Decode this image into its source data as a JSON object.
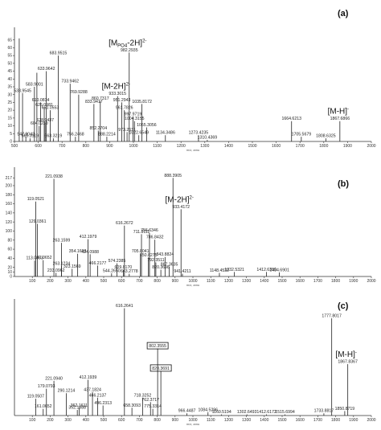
{
  "chart_data": [
    {
      "type": "bar",
      "panel_label": "(a)",
      "xlabel": "m/z, amu",
      "ylabel": "",
      "xlim": [
        500,
        2000
      ],
      "ylim": [
        0,
        70
      ],
      "x_ticks": [
        500,
        600,
        700,
        800,
        900,
        1000,
        1100,
        1200,
        1300,
        1400,
        1500,
        1600,
        1700,
        1800,
        1900,
        2000
      ],
      "y_ticks": [
        0,
        5,
        10,
        15,
        20,
        25,
        30,
        35,
        40,
        45,
        50,
        55,
        60,
        65
      ],
      "peaks": [
        {
          "x": 520.0,
          "y": 66,
          "label": ""
        },
        {
          "x": 533.9545,
          "y": 31,
          "label": "533.9545"
        },
        {
          "x": 547.8042,
          "y": 3,
          "label": "547.8042"
        },
        {
          "x": 565.3119,
          "y": 2,
          "label": "565.3119"
        },
        {
          "x": 583.9001,
          "y": 35,
          "label": "583.9001"
        },
        {
          "x": 594.2,
          "y": 44,
          "label": ""
        },
        {
          "x": 604.023,
          "y": 10,
          "label": "604.0230"
        },
        {
          "x": 610.0834,
          "y": 25,
          "label": "610.0834"
        },
        {
          "x": 625.0981,
          "y": 22,
          "label": "625.0981"
        },
        {
          "x": 628.9437,
          "y": 12,
          "label": "628.9437"
        },
        {
          "x": 633.9642,
          "y": 45,
          "label": "633.9642"
        },
        {
          "x": 650.0553,
          "y": 20,
          "label": "650.0553"
        },
        {
          "x": 663.3219,
          "y": 2,
          "label": "663.3219"
        },
        {
          "x": 683.9515,
          "y": 55,
          "label": "683.9515"
        },
        {
          "x": 733.9462,
          "y": 37,
          "label": "733.9462"
        },
        {
          "x": 756.2468,
          "y": 3,
          "label": "756.2468"
        },
        {
          "x": 769.9288,
          "y": 30,
          "label": "769.9288"
        },
        {
          "x": 833.9417,
          "y": 24,
          "label": "833.9417"
        },
        {
          "x": 852.2704,
          "y": 7,
          "label": "852.2704"
        },
        {
          "x": 860.7317,
          "y": 26,
          "label": "860.7317"
        },
        {
          "x": 888.2214,
          "y": 3,
          "label": "888.2214"
        },
        {
          "x": 933.3015,
          "y": 29,
          "label": "933.3015"
        },
        {
          "x": 951.2943,
          "y": 25,
          "label": "951.2943"
        },
        {
          "x": 961.7826,
          "y": 20,
          "label": "961.7826"
        },
        {
          "x": 973.2631,
          "y": 6,
          "label": "973.2631"
        },
        {
          "x": 982.2935,
          "y": 57,
          "label": "982.2935"
        },
        {
          "x": 997.9719,
          "y": 16,
          "label": "997.9719"
        },
        {
          "x": 1004.3155,
          "y": 13,
          "label": "1004.3155"
        },
        {
          "x": 1022.6549,
          "y": 4,
          "label": "1022.6549"
        },
        {
          "x": 1035.8172,
          "y": 24,
          "label": "1035.8172"
        },
        {
          "x": 1055.3056,
          "y": 9,
          "label": "1055.3056"
        },
        {
          "x": 1134.3486,
          "y": 4,
          "label": "1134.3486"
        },
        {
          "x": 1273.4235,
          "y": 4,
          "label": "1273.4235"
        },
        {
          "x": 1310.4369,
          "y": 1,
          "label": "1310.4369"
        },
        {
          "x": 1664.6213,
          "y": 13,
          "label": "1664.6213"
        },
        {
          "x": 1705.5679,
          "y": 3,
          "label": "1705.5679"
        },
        {
          "x": 1808.6325,
          "y": 2,
          "label": "1808.6325"
        },
        {
          "x": 1867.6866,
          "y": 13,
          "label": "1867.6866"
        }
      ],
      "annotations": [
        {
          "main": "[M",
          "sub": "PO4",
          "tail": "-2H]",
          "sup": "2-",
          "x": 982.2935
        },
        {
          "main": "[M-2H]",
          "sup": "2-",
          "x": 933.3015
        },
        {
          "main": "[M-H]",
          "sup": "-",
          "x": 1867.6866
        }
      ]
    },
    {
      "type": "bar",
      "panel_label": "(b)",
      "xlabel": "m/z, amu",
      "ylabel": "",
      "xlim": [
        0,
        2000
      ],
      "ylim": [
        0,
        230
      ],
      "x_ticks": [
        100,
        200,
        300,
        400,
        500,
        600,
        700,
        800,
        900,
        1000,
        1100,
        1200,
        1300,
        1400,
        1500,
        1600,
        1700,
        1800,
        1900,
        2000
      ],
      "y_ticks": [
        0,
        10,
        20,
        40,
        60,
        80,
        100,
        120,
        140,
        160,
        180,
        200,
        217
      ],
      "peaks": [
        {
          "x": 113.0093,
          "y": 35,
          "label": "113.0093"
        },
        {
          "x": 119.0521,
          "y": 165,
          "label": "119.0521"
        },
        {
          "x": 129.0361,
          "y": 116,
          "label": "129.0361"
        },
        {
          "x": 161.0652,
          "y": 36,
          "label": "161.0652"
        },
        {
          "x": 221.0938,
          "y": 215,
          "label": "221.0938"
        },
        {
          "x": 233.0962,
          "y": 8,
          "label": "233.0962"
        },
        {
          "x": 263.1234,
          "y": 23,
          "label": "263.1234"
        },
        {
          "x": 263.1599,
          "y": 74,
          "label": "263.1599"
        },
        {
          "x": 323.1569,
          "y": 17,
          "label": "323.1569"
        },
        {
          "x": 354.1603,
          "y": 50,
          "label": "354.1603"
        },
        {
          "x": 412.1979,
          "y": 82,
          "label": "412.1979"
        },
        {
          "x": 424.0988,
          "y": 49,
          "label": "424.0988"
        },
        {
          "x": 466.2177,
          "y": 24,
          "label": "466.2177"
        },
        {
          "x": 544.265,
          "y": 7,
          "label": "544.2650"
        },
        {
          "x": 574.2385,
          "y": 29,
          "label": "574.2385"
        },
        {
          "x": 609.817,
          "y": 15,
          "label": "609.8170"
        },
        {
          "x": 616.2672,
          "y": 112,
          "label": "616.2672"
        },
        {
          "x": 643.2778,
          "y": 6,
          "label": "643.2778"
        },
        {
          "x": 705.8041,
          "y": 50,
          "label": "705.8041"
        },
        {
          "x": 711.8111,
          "y": 93,
          "label": "711.8111"
        },
        {
          "x": 750.8275,
          "y": 42,
          "label": "750.8275"
        },
        {
          "x": 756.6346,
          "y": 96,
          "label": "756.6346"
        },
        {
          "x": 786.8432,
          "y": 81,
          "label": "786.8432"
        },
        {
          "x": 792.3511,
          "y": 31,
          "label": "792.3511"
        },
        {
          "x": 820.3698,
          "y": 15,
          "label": "820.3698"
        },
        {
          "x": 843.8824,
          "y": 43,
          "label": "843.8824"
        },
        {
          "x": 867.3635,
          "y": 21,
          "label": "867.3635"
        },
        {
          "x": 888.3905,
          "y": 217,
          "label": "888.3905"
        },
        {
          "x": 933.4172,
          "y": 148,
          "label": "933.4172"
        },
        {
          "x": 941.4211,
          "y": 6,
          "label": "941.4211"
        },
        {
          "x": 1148.4532,
          "y": 8,
          "label": "1148.4532"
        },
        {
          "x": 1232.5321,
          "y": 10,
          "label": "1232.5321"
        },
        {
          "x": 1412.6399,
          "y": 10,
          "label": "1412.6399"
        },
        {
          "x": 1484.6901,
          "y": 9,
          "label": "1484.6901"
        }
      ],
      "annotations": [
        {
          "main": "[M-2H]",
          "sup": "2-",
          "x": 933.4172
        }
      ]
    },
    {
      "type": "bar",
      "panel_label": "(c)",
      "xlabel": "m/z, amu",
      "ylabel": "",
      "xlim": [
        0,
        2000
      ],
      "ylim": [
        0,
        100
      ],
      "x_ticks": [
        100,
        200,
        300,
        400,
        500,
        600,
        700,
        800,
        900,
        1000,
        1100,
        1200,
        1300,
        1400,
        1500,
        1600,
        1700,
        1800,
        1900,
        2000
      ],
      "y_ticks": [],
      "peaks": [
        {
          "x": 119.0507,
          "y": 15,
          "label": "119.0507"
        },
        {
          "x": 161.0652,
          "y": 6,
          "label": "161.0652"
        },
        {
          "x": 179.0793,
          "y": 24,
          "label": "179.0793"
        },
        {
          "x": 221.094,
          "y": 31,
          "label": "221.0940"
        },
        {
          "x": 290.1214,
          "y": 20,
          "label": "290.1214"
        },
        {
          "x": 352.1688,
          "y": 5,
          "label": "352.1688"
        },
        {
          "x": 362.1611,
          "y": 7,
          "label": "362.1611"
        },
        {
          "x": 412.1939,
          "y": 32,
          "label": "412.1939"
        },
        {
          "x": 437.1824,
          "y": 21,
          "label": "437.1824"
        },
        {
          "x": 466.2137,
          "y": 16,
          "label": "466.2137"
        },
        {
          "x": 496.2313,
          "y": 9,
          "label": "496.2313"
        },
        {
          "x": 616.2641,
          "y": 96,
          "label": "616.2641"
        },
        {
          "x": 658.3093,
          "y": 7,
          "label": "658.3093"
        },
        {
          "x": 718.3252,
          "y": 16,
          "label": "718.3252"
        },
        {
          "x": 762.3717,
          "y": 12,
          "label": "762.3717"
        },
        {
          "x": 775.3314,
          "y": 6,
          "label": "775.3314"
        },
        {
          "x": 802.3555,
          "y": 60,
          "label": "802.3555"
        },
        {
          "x": 820.3691,
          "y": 40,
          "label": "820.3691"
        },
        {
          "x": 966.4487,
          "y": 2,
          "label": "966.4487"
        },
        {
          "x": 1084.5296,
          "y": 3,
          "label": "1084.5296"
        },
        {
          "x": 1160.5194,
          "y": 1,
          "label": "1160.5194"
        },
        {
          "x": 1302.6493,
          "y": 1,
          "label": "1302.6493"
        },
        {
          "x": 1412.6172,
          "y": 1,
          "label": "1412.6172"
        },
        {
          "x": 1515.6994,
          "y": 1,
          "label": "1515.6994"
        },
        {
          "x": 1733.8817,
          "y": 2,
          "label": "1733.8817"
        },
        {
          "x": 1777.8017,
          "y": 87,
          "label": "1777.8017"
        },
        {
          "x": 1850.8719,
          "y": 4,
          "label": "1850.8719"
        },
        {
          "x": 1867.8367,
          "y": 46,
          "label": "1867.8367"
        }
      ],
      "boxed_labels": [
        "802.3555",
        "820.3691"
      ],
      "annotations": [
        {
          "main": "[M-H]",
          "sup": "-",
          "x": 1867.8367
        }
      ]
    }
  ]
}
